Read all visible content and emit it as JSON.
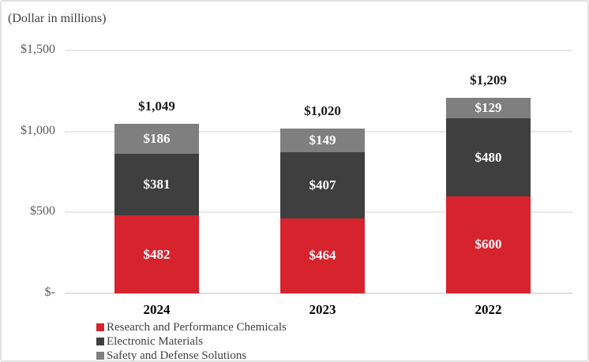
{
  "chart_data": {
    "type": "bar",
    "stacked": true,
    "title": "(Dollar in millions)",
    "categories": [
      "2024",
      "2023",
      "2022"
    ],
    "series": [
      {
        "name": "Research and Performance Chemicals",
        "color": "#d7232e",
        "values": [
          482,
          464,
          600
        ],
        "labels": [
          "$482",
          "$464",
          "$600"
        ]
      },
      {
        "name": "Electronic Materials",
        "color": "#3f3f3f",
        "values": [
          381,
          407,
          480
        ],
        "labels": [
          "$381",
          "$407",
          "$480"
        ]
      },
      {
        "name": "Safety and Defense Solutions",
        "color": "#7f7f7f",
        "values": [
          186,
          149,
          129
        ],
        "labels": [
          "$186",
          "$149",
          "$129"
        ]
      }
    ],
    "totals": [
      1049,
      1020,
      1209
    ],
    "total_labels": [
      "$1,049",
      "$1,020",
      "$1,209"
    ],
    "y_axis": {
      "min": 0,
      "max": 1500,
      "ticks": [
        {
          "value": 0,
          "label": "$-"
        },
        {
          "value": 500,
          "label": "$500"
        },
        {
          "value": 1000,
          "label": "$1,000"
        },
        {
          "value": 1500,
          "label": "$1,500"
        }
      ]
    },
    "grid": true,
    "legend_position": "bottom-left"
  }
}
